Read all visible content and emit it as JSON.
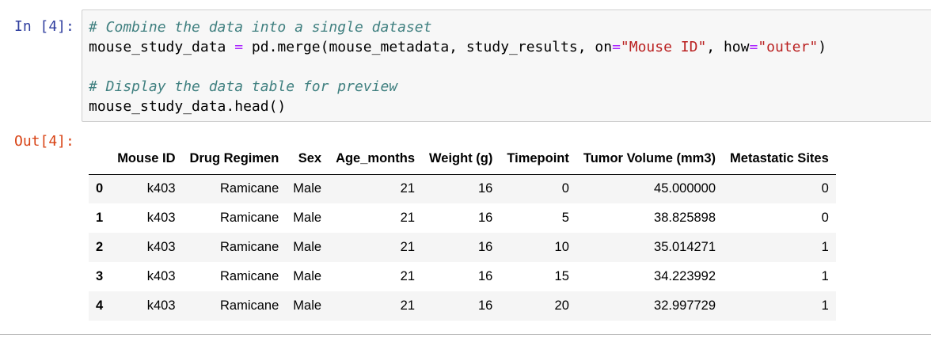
{
  "input_cell": {
    "prompt": "In [4]:",
    "code": {
      "comment1": "# Combine the data into a single dataset",
      "line2": {
        "var": "mouse_study_data",
        "eq": "=",
        "call": "pd.merge(mouse_metadata, study_results, on",
        "eq2": "=",
        "str1": "\"Mouse ID\"",
        "sep": ", how",
        "eq3": "=",
        "str2": "\"outer\"",
        "close": ")"
      },
      "comment2": "# Display the data table for preview",
      "line5": "mouse_study_data.head()"
    }
  },
  "output_cell": {
    "prompt": "Out[4]:",
    "table": {
      "columns": [
        "",
        "Mouse ID",
        "Drug Regimen",
        "Sex",
        "Age_months",
        "Weight (g)",
        "Timepoint",
        "Tumor Volume (mm3)",
        "Metastatic Sites"
      ],
      "rows": [
        [
          "0",
          "k403",
          "Ramicane",
          "Male",
          "21",
          "16",
          "0",
          "45.000000",
          "0"
        ],
        [
          "1",
          "k403",
          "Ramicane",
          "Male",
          "21",
          "16",
          "5",
          "38.825898",
          "0"
        ],
        [
          "2",
          "k403",
          "Ramicane",
          "Male",
          "21",
          "16",
          "10",
          "35.014271",
          "1"
        ],
        [
          "3",
          "k403",
          "Ramicane",
          "Male",
          "21",
          "16",
          "15",
          "34.223992",
          "1"
        ],
        [
          "4",
          "k403",
          "Ramicane",
          "Male",
          "21",
          "16",
          "20",
          "32.997729",
          "1"
        ]
      ]
    }
  },
  "colors": {
    "in_prompt": "#303f9f",
    "out_prompt": "#d84315",
    "comment": "#408080",
    "operator": "#aa22ff",
    "string": "#ba2121",
    "input_background": "#f7f7f7",
    "row_stripe": "#f5f5f5"
  }
}
